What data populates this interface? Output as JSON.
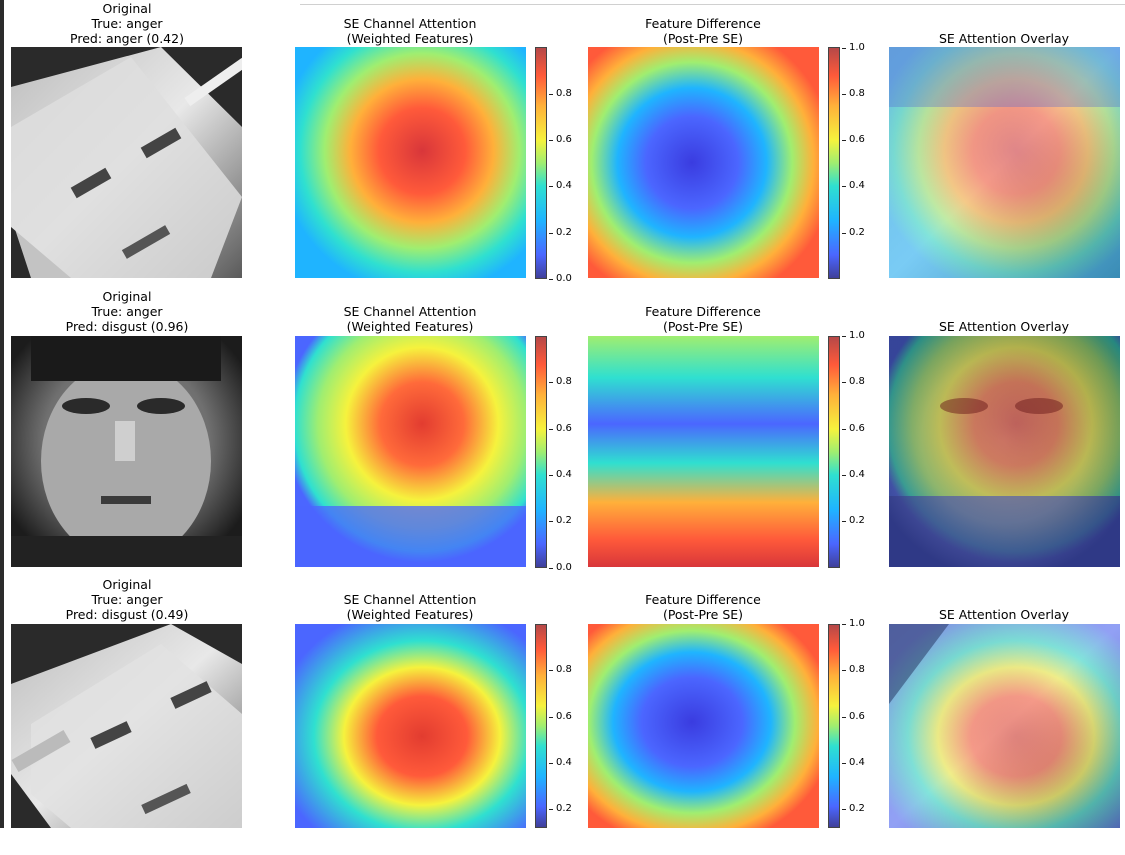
{
  "rows": [
    {
      "original": {
        "l1": "Original",
        "l2": "True: anger",
        "l3": "Pred: anger (0.42)"
      },
      "se": {
        "l1": "SE Channel Attention",
        "l2": "(Weighted Features)"
      },
      "diff": {
        "l1": "Feature Difference",
        "l2": "(Post-Pre SE)"
      },
      "overlay": {
        "l1": "SE Attention Overlay"
      },
      "cbar1_ticks": [
        "0.0",
        "0.2",
        "0.4",
        "0.6",
        "0.8"
      ],
      "cbar2_ticks": [
        "0.2",
        "0.4",
        "0.6",
        "0.8",
        "1.0"
      ]
    },
    {
      "original": {
        "l1": "Original",
        "l2": "True: anger",
        "l3": "Pred: disgust (0.96)"
      },
      "se": {
        "l1": "SE Channel Attention",
        "l2": "(Weighted Features)"
      },
      "diff": {
        "l1": "Feature Difference",
        "l2": "(Post-Pre SE)"
      },
      "overlay": {
        "l1": "SE Attention Overlay"
      },
      "cbar1_ticks": [
        "0.0",
        "0.2",
        "0.4",
        "0.6",
        "0.8"
      ],
      "cbar2_ticks": [
        "0.2",
        "0.4",
        "0.6",
        "0.8",
        "1.0"
      ]
    },
    {
      "original": {
        "l1": "Original",
        "l2": "True: anger",
        "l3": "Pred: disgust (0.49)"
      },
      "se": {
        "l1": "SE Channel Attention",
        "l2": "(Weighted Features)"
      },
      "diff": {
        "l1": "Feature Difference",
        "l2": "(Post-Pre SE)"
      },
      "overlay": {
        "l1": "SE Attention Overlay"
      },
      "cbar1_ticks": [
        "0.2",
        "0.4",
        "0.6",
        "0.8"
      ],
      "cbar2_ticks": [
        "0.2",
        "0.4",
        "0.6",
        "0.8",
        "1.0"
      ]
    }
  ],
  "colormap": [
    "#40409a",
    "#4b66ff",
    "#1fb4ff",
    "#2fe0d0",
    "#a0ee70",
    "#f6f23d",
    "#ffb03a",
    "#ff5a3a",
    "#b64848"
  ]
}
